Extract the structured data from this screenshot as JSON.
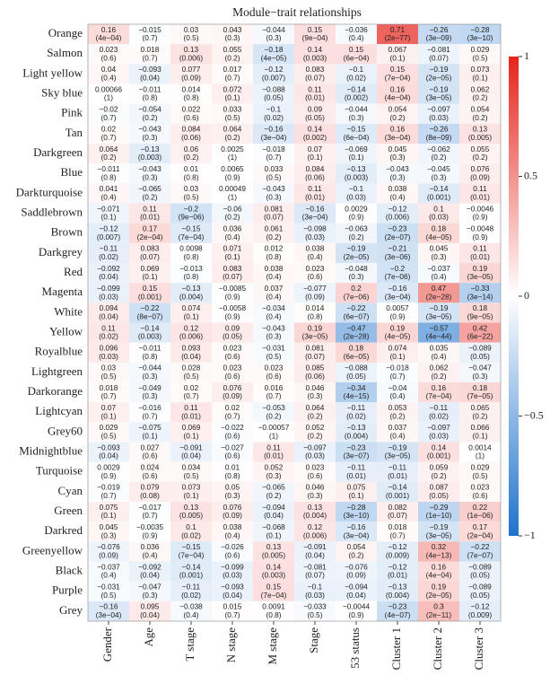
{
  "chart_data": {
    "type": "heatmap",
    "title": "Module−trait relationships",
    "rows": [
      "Orange",
      "Salmon",
      "Light yellow",
      "Sky blue",
      "Pink",
      "Tan",
      "Darkgreen",
      "Blue",
      "Darkturquoise",
      "Saddlebrown",
      "Brown",
      "Darkgrey",
      "Red",
      "Magenta",
      "White",
      "Yellow",
      "Royalblue",
      "Lightgreen",
      "Darkorange",
      "Lightcyan",
      "Grey60",
      "Midnightblue",
      "Turquoise",
      "Cyan",
      "Green",
      "Darkred",
      "Greenyellow",
      "Black",
      "Purple",
      "Grey"
    ],
    "columns": [
      "Gender",
      "Age",
      "T stage",
      "N stage",
      "M stage",
      "Stage",
      "53 status",
      "Cluster 1",
      "Cluster 2",
      "Cluster 3"
    ],
    "values": [
      [
        0.16,
        -0.015,
        0.03,
        0.043,
        -0.044,
        0.15,
        -0.036,
        0.71,
        -0.26,
        -0.28
      ],
      [
        0.023,
        0.018,
        0.13,
        0.055,
        -0.18,
        0.14,
        0.15,
        0.067,
        -0.081,
        0.029
      ],
      [
        0.04,
        -0.093,
        0.077,
        0.017,
        -0.12,
        0.083,
        -0.1,
        0.15,
        -0.19,
        0.073
      ],
      [
        0.00066,
        -0.011,
        0.014,
        0.072,
        -0.088,
        0.11,
        -0.14,
        0.16,
        -0.19,
        0.062
      ],
      [
        -0.02,
        -0.054,
        0.022,
        0.033,
        -0.1,
        0.09,
        -0.044,
        0.054,
        -0.097,
        0.054
      ],
      [
        0.02,
        -0.043,
        0.084,
        0.064,
        -0.16,
        0.14,
        -0.15,
        0.16,
        -0.26,
        0.13
      ],
      [
        0.064,
        -0.13,
        0.06,
        0.0025,
        -0.018,
        0.07,
        -0.069,
        0.045,
        -0.062,
        0.055
      ],
      [
        -0.011,
        -0.043,
        0.01,
        0.0065,
        0.033,
        0.084,
        -0.13,
        -0.043,
        -0.045,
        0.076
      ],
      [
        0.041,
        -0.065,
        0.03,
        0.00049,
        -0.043,
        0.11,
        -0.1,
        0.038,
        -0.14,
        0.11
      ],
      [
        -0.071,
        0.11,
        -0.2,
        -0.06,
        0.081,
        -0.16,
        0.0029,
        -0.12,
        0.1,
        -0.0046
      ],
      [
        -0.12,
        0.17,
        -0.15,
        0.036,
        0.061,
        -0.098,
        -0.063,
        -0.23,
        0.18,
        -0.0048
      ],
      [
        -0.11,
        0.083,
        0.0098,
        0.071,
        0.012,
        0.038,
        -0.19,
        -0.21,
        0.045,
        0.11
      ],
      [
        -0.092,
        0.069,
        -0.013,
        0.083,
        0.038,
        0.023,
        -0.048,
        -0.2,
        -0.037,
        0.19
      ],
      [
        -0.099,
        0.15,
        -0.13,
        -0.0085,
        0.037,
        -0.077,
        0.2,
        -0.16,
        0.47,
        -0.33
      ],
      [
        0.094,
        -0.22,
        0.074,
        -0.0058,
        -0.034,
        0.014,
        -0.22,
        0.0057,
        -0.19,
        0.18
      ],
      [
        0.11,
        -0.14,
        0.12,
        0.09,
        -0.043,
        0.19,
        -0.47,
        0.19,
        -0.57,
        0.42
      ],
      [
        0.096,
        -0.011,
        0.093,
        0.023,
        -0.031,
        0.081,
        0.18,
        0.074,
        0.035,
        -0.089
      ],
      [
        0.03,
        -0.044,
        0.028,
        0.023,
        0.023,
        0.085,
        -0.088,
        -0.018,
        0.062,
        -0.047
      ],
      [
        0.018,
        -0.049,
        0.02,
        0.076,
        0.016,
        0.046,
        -0.34,
        -0.04,
        0.16,
        0.18
      ],
      [
        0.07,
        -0.016,
        0.11,
        0.02,
        -0.053,
        0.064,
        -0.11,
        0.053,
        -0.11,
        0.065
      ],
      [
        0.029,
        -0.075,
        0.069,
        -0.022,
        -0.00057,
        0.052,
        -0.13,
        0.037,
        -0.097,
        0.066
      ],
      [
        -0.093,
        0.027,
        -0.091,
        -0.027,
        0.11,
        -0.097,
        -0.23,
        -0.19,
        0.14,
        0.0014
      ],
      [
        0.0029,
        0.024,
        0.034,
        0.01,
        0.052,
        0.023,
        -0.11,
        -0.11,
        0.059,
        0.029
      ],
      [
        -0.019,
        0.079,
        0.073,
        0.05,
        -0.065,
        0.046,
        0.075,
        -0.14,
        0.087,
        0.023
      ],
      [
        0.075,
        -0.017,
        0.13,
        0.076,
        -0.094,
        0.13,
        -0.28,
        0.082,
        -0.29,
        0.22
      ],
      [
        0.045,
        -0.0035,
        0.1,
        0.038,
        -0.068,
        0.12,
        -0.16,
        0.018,
        -0.19,
        0.17
      ],
      [
        -0.076,
        0.036,
        -0.15,
        -0.026,
        0.13,
        -0.091,
        0.054,
        -0.12,
        0.32,
        -0.22
      ],
      [
        -0.037,
        -0.092,
        -0.14,
        -0.099,
        0.14,
        -0.081,
        -0.076,
        -0.12,
        0.16,
        -0.089
      ],
      [
        -0.031,
        -0.047,
        -0.11,
        -0.093,
        0.15,
        -0.1,
        -0.094,
        -0.13,
        0.19,
        -0.089
      ],
      [
        -0.16,
        0.095,
        -0.038,
        0.015,
        0.0091,
        -0.033,
        -0.0044,
        -0.23,
        0.3,
        -0.12
      ]
    ],
    "value_labels": [
      [
        "0.16",
        "−0.015",
        "0.03",
        "0.043",
        "−0.044",
        "0.15",
        "−0.036",
        "0.71",
        "−0.26",
        "−0.28"
      ],
      [
        "0.023",
        "0.018",
        "0.13",
        "0.055",
        "−0.18",
        "0.14",
        "0.15",
        "0.067",
        "−0.081",
        "0.029"
      ],
      [
        "0.04",
        "−0.093",
        "0.077",
        "0.017",
        "−0.12",
        "0.083",
        "−0.1",
        "0.15",
        "−0.19",
        "0.073"
      ],
      [
        "0.00066",
        "−0.011",
        "0.014",
        "0.072",
        "−0.088",
        "0.11",
        "−0.14",
        "0.16",
        "−0.19",
        "0.062"
      ],
      [
        "−0.02",
        "−0.054",
        "0.022",
        "0.033",
        "−0.1",
        "0.09",
        "−0.044",
        "0.054",
        "−0.097",
        "0.054"
      ],
      [
        "0.02",
        "−0.043",
        "0.084",
        "0.064",
        "−0.16",
        "0.14",
        "−0.15",
        "0.16",
        "−0.26",
        "0.13"
      ],
      [
        "0.064",
        "−0.13",
        "0.06",
        "0.0025",
        "−0.018",
        "0.07",
        "−0.069",
        "0.045",
        "−0.062",
        "0.055"
      ],
      [
        "−0.011",
        "−0.043",
        "0.01",
        "0.0065",
        "0.033",
        "0.084",
        "−0.13",
        "−0.043",
        "−0.045",
        "0.076"
      ],
      [
        "0.041",
        "−0.065",
        "0.03",
        "0.00049",
        "−0.043",
        "0.11",
        "−0.1",
        "0.038",
        "−0.14",
        "0.11"
      ],
      [
        "−0.071",
        "0.11",
        "−0.2",
        "−0.06",
        "0.081",
        "−0.16",
        "0.0029",
        "−0.12",
        "0.1",
        "−0.0046"
      ],
      [
        "−0.12",
        "0.17",
        "−0.15",
        "0.036",
        "0.061",
        "−0.098",
        "−0.063",
        "−0.23",
        "0.18",
        "−0.0048"
      ],
      [
        "−0.11",
        "0.083",
        "0.0098",
        "0.071",
        "0.012",
        "0.038",
        "−0.19",
        "−0.21",
        "0.045",
        "0.11"
      ],
      [
        "−0.092",
        "0.069",
        "−0.013",
        "0.083",
        "0.038",
        "0.023",
        "−0.048",
        "−0.2",
        "−0.037",
        "0.19"
      ],
      [
        "−0.099",
        "0.15",
        "−0.13",
        "−0.0085",
        "0.037",
        "−0.077",
        "0.2",
        "−0.16",
        "0.47",
        "−0.33"
      ],
      [
        "0.094",
        "−0.22",
        "0.074",
        "−0.0058",
        "−0.034",
        "0.014",
        "−0.22",
        "0.0057",
        "−0.19",
        "0.18"
      ],
      [
        "0.11",
        "−0.14",
        "0.12",
        "0.09",
        "−0.043",
        "0.19",
        "−0.47",
        "0.19",
        "−0.57",
        "0.42"
      ],
      [
        "0.096",
        "−0.011",
        "0.093",
        "0.023",
        "−0.031",
        "0.081",
        "0.18",
        "0.074",
        "0.035",
        "−0.089"
      ],
      [
        "0.03",
        "−0.044",
        "0.028",
        "0.023",
        "0.023",
        "0.085",
        "−0.088",
        "−0.018",
        "0.062",
        "−0.047"
      ],
      [
        "0.018",
        "−0.049",
        "0.02",
        "0.076",
        "0.016",
        "0.046",
        "−0.34",
        "−0.04",
        "0.16",
        "0.18"
      ],
      [
        "0.07",
        "−0.016",
        "0.11",
        "0.02",
        "−0.053",
        "0.064",
        "−0.11",
        "0.053",
        "−0.11",
        "0.065"
      ],
      [
        "0.029",
        "−0.075",
        "0.069",
        "−0.022",
        "−0.00057",
        "0.052",
        "−0.13",
        "0.037",
        "−0.097",
        "0.066"
      ],
      [
        "−0.093",
        "0.027",
        "−0.091",
        "−0.027",
        "0.11",
        "−0.097",
        "−0.23",
        "−0.19",
        "0.14",
        "0.0014"
      ],
      [
        "0.0029",
        "0.024",
        "0.034",
        "0.01",
        "0.052",
        "0.023",
        "−0.11",
        "−0.11",
        "0.059",
        "0.029"
      ],
      [
        "−0.019",
        "0.079",
        "0.073",
        "0.05",
        "−0.065",
        "0.046",
        "0.075",
        "−0.14",
        "0.087",
        "0.023"
      ],
      [
        "0.075",
        "−0.017",
        "0.13",
        "0.076",
        "−0.094",
        "0.13",
        "−0.28",
        "0.082",
        "−0.29",
        "0.22"
      ],
      [
        "0.045",
        "−0.0035",
        "0.1",
        "0.038",
        "−0.068",
        "0.12",
        "−0.16",
        "0.018",
        "−0.19",
        "0.17"
      ],
      [
        "−0.076",
        "0.036",
        "−0.15",
        "−0.026",
        "0.13",
        "−0.091",
        "0.054",
        "−0.12",
        "0.32",
        "−0.22"
      ],
      [
        "−0.037",
        "−0.092",
        "−0.14",
        "−0.099",
        "0.14",
        "−0.081",
        "−0.076",
        "−0.12",
        "0.16",
        "−0.089"
      ],
      [
        "−0.031",
        "−0.047",
        "−0.11",
        "−0.093",
        "0.15",
        "−0.1",
        "−0.094",
        "−0.13",
        "0.19",
        "−0.089"
      ],
      [
        "−0.16",
        "0.095",
        "−0.038",
        "0.015",
        "0.0091",
        "−0.033",
        "−0.0044",
        "−0.23",
        "0.3",
        "−0.12"
      ]
    ],
    "pvalues": [
      [
        "(4e−04)",
        "(0.7)",
        "(0.5)",
        "(0.3)",
        "(0.3)",
        "(9e−04)",
        "(0.4)",
        "(2e−77)",
        "(3e−09)",
        "(3e−10)"
      ],
      [
        "(0.6)",
        "(0.7)",
        "(0.006)",
        "(0.2)",
        "(4e−05)",
        "(0.003)",
        "(6e−04)",
        "(0.1)",
        "(0.07)",
        "(0.5)"
      ],
      [
        "(0.4)",
        "(0.04)",
        "(0.09)",
        "(0.7)",
        "(0.007)",
        "(0.07)",
        "(0.02)",
        "(7e−04)",
        "(2e−05)",
        "(0.1)"
      ],
      [
        "(1)",
        "(0.8)",
        "(0.8)",
        "(0.1)",
        "(0.05)",
        "(0.01)",
        "(0.002)",
        "(4e−04)",
        "(3e−05)",
        "(0.2)"
      ],
      [
        "(0.7)",
        "(0.2)",
        "(0.6)",
        "(0.5)",
        "(0.02)",
        "(0.05)",
        "(0.3)",
        "(0.2)",
        "(0.03)",
        "(0.2)"
      ],
      [
        "(0.7)",
        "(0.3)",
        "(0.06)",
        "(0.2)",
        "(3e−04)",
        "(0.002)",
        "(6e−04)",
        "(3e−04)",
        "(8e−09)",
        "(0.005)"
      ],
      [
        "(0.2)",
        "(0.003)",
        "(0.2)",
        "(1)",
        "(0.7)",
        "(0.1)",
        "(0.1)",
        "(0.3)",
        "(0.2)",
        "(0.2)"
      ],
      [
        "(0.8)",
        "(0.3)",
        "(0.8)",
        "(0.9)",
        "(0.5)",
        "(0.06)",
        "(0.003)",
        "(0.3)",
        "(0.3)",
        "(0.09)"
      ],
      [
        "(0.4)",
        "(0.2)",
        "(0.5)",
        "(1)",
        "(0.3)",
        "(0.01)",
        "(0.03)",
        "(0.4)",
        "(0.001)",
        "(0.01)"
      ],
      [
        "(0.1)",
        "(0.01)",
        "(9e−06)",
        "(0.2)",
        "(0.07)",
        "(3e−04)",
        "(0.9)",
        "(0.006)",
        "(0.03)",
        "(0.9)"
      ],
      [
        "(0.007)",
        "(2e−04)",
        "(7e−04)",
        "(0.4)",
        "(0.2)",
        "(0.03)",
        "(0.2)",
        "(2e−07)",
        "(4e−05)",
        "(0.9)"
      ],
      [
        "(0.02)",
        "(0.07)",
        "(0.8)",
        "(0.1)",
        "(0.8)",
        "(0.4)",
        "(2e−05)",
        "(3e−06)",
        "(0.3)",
        "(0.01)"
      ],
      [
        "(0.04)",
        "(0.1)",
        "(0.8)",
        "(0.07)",
        "(0.4)",
        "(0.6)",
        "(0.3)",
        "(7e−06)",
        "(0.4)",
        "(3e−05)"
      ],
      [
        "(0.03)",
        "(0.001)",
        "(0.004)",
        "(0.9)",
        "(0.4)",
        "(0.09)",
        "(7e−06)",
        "(3e−04)",
        "(2e−28)",
        "(3e−14)"
      ],
      [
        "(0.04)",
        "(8e−07)",
        "(0.1)",
        "(0.9)",
        "(0.4)",
        "(0.8)",
        "(6e−07)",
        "(0.9)",
        "(3e−05)",
        "(9e−05)"
      ],
      [
        "(0.02)",
        "(0.003)",
        "(0.006)",
        "(0.05)",
        "(0.3)",
        "(3e−05)",
        "(2e−28)",
        "(4e−05)",
        "(4e−44)",
        "(6e−22)"
      ],
      [
        "(0.03)",
        "(0.8)",
        "(0.04)",
        "(0.6)",
        "(0.5)",
        "(0.07)",
        "(6e−05)",
        "(0.1)",
        "(0.4)",
        "(0.05)"
      ],
      [
        "(0.5)",
        "(0.3)",
        "(0.5)",
        "(0.6)",
        "(0.6)",
        "(0.06)",
        "(0.05)",
        "(0.7)",
        "(0.2)",
        "(0.3)"
      ],
      [
        "(0.7)",
        "(0.3)",
        "(0.7)",
        "(0.09)",
        "(0.7)",
        "(0.3)",
        "(4e−15)",
        "(0.4)",
        "(7e−04)",
        "(7e−05)"
      ],
      [
        "(0.1)",
        "(0.7)",
        "(0.01)",
        "(0.7)",
        "(0.2)",
        "(0.2)",
        "(0.02)",
        "(0.2)",
        "(0.02)",
        "(0.2)"
      ],
      [
        "(0.5)",
        "(0.1)",
        "(0.1)",
        "(0.6)",
        "(1)",
        "(0.2)",
        "(0.004)",
        "(0.4)",
        "(0.03)",
        "(0.1)"
      ],
      [
        "(0.04)",
        "(0.6)",
        "(0.04)",
        "(0.6)",
        "(0.01)",
        "(0.03)",
        "(3e−07)",
        "(3e−05)",
        "(0.001)",
        "(1)"
      ],
      [
        "(0.9)",
        "(0.6)",
        "(0.5)",
        "(0.8)",
        "(0.3)",
        "(0.6)",
        "(0.01)",
        "(0.01)",
        "(0.2)",
        "(0.5)"
      ],
      [
        "(0.7)",
        "(0.08)",
        "(0.1)",
        "(0.3)",
        "(0.2)",
        "(0.3)",
        "(0.1)",
        "(0.001)",
        "(0.05)",
        "(0.6)"
      ],
      [
        "(0.1)",
        "(0.7)",
        "(0.005)",
        "(0.09)",
        "(0.04)",
        "(0.004)",
        "(3e−10)",
        "(0.07)",
        "(1e−10)",
        "(1e−06)"
      ],
      [
        "(0.3)",
        "(0.9)",
        "(0.02)",
        "(0.4)",
        "(0.1)",
        "(0.006)",
        "(3e−04)",
        "(0.7)",
        "(3e−05)",
        "(2e−04)"
      ],
      [
        "(0.09)",
        "(0.4)",
        "(7e−04)",
        "(0.6)",
        "(0.005)",
        "(0.04)",
        "(0.2)",
        "(0.009)",
        "(4e−13)",
        "(7e−07)"
      ],
      [
        "(0.4)",
        "(0.04)",
        "(0.001)",
        "(0.03)",
        "(0.003)",
        "(0.07)",
        "(0.09)",
        "(0.01)",
        "(4e−04)",
        "(0.05)"
      ],
      [
        "(0.5)",
        "(0.3)",
        "(0.02)",
        "(0.04)",
        "(7e−04)",
        "(0.03)",
        "(0.04)",
        "(0.004)",
        "(2e−05)",
        "(0.05)"
      ],
      [
        "(3e−04)",
        "(0.04)",
        "(0.4)",
        "(0.7)",
        "(0.8)",
        "(0.5)",
        "(0.9)",
        "(4e−07)",
        "(2e−11)",
        "(0.009)"
      ]
    ],
    "zlim": [
      -1,
      1
    ],
    "zticks": [
      1,
      0.5,
      0,
      {
        "value": -0.5,
        "label": "−0.5"
      },
      {
        "value": -1,
        "label": "−1"
      }
    ],
    "colors": {
      "low": "#1f72cc",
      "mid": "#ffffff",
      "high": "#e5251c"
    }
  }
}
